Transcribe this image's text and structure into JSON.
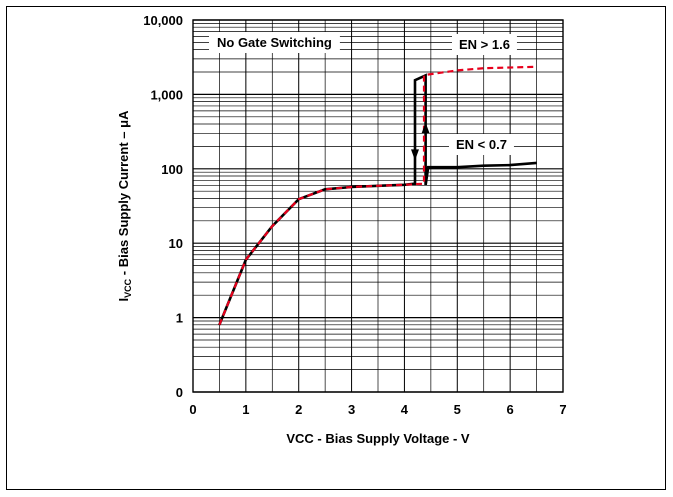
{
  "chart_data": {
    "type": "line",
    "title": "",
    "xlabel": "VCC - Bias Supply Voltage - V",
    "ylabel": {
      "main": "I",
      "subscript": "VCC",
      "rest": " - Bias Supply Current – μA"
    },
    "x_ticks": [
      "0",
      "1",
      "2",
      "3",
      "4",
      "5",
      "6",
      "7"
    ],
    "xlim": [
      0,
      7
    ],
    "y_scale": "log",
    "y_ticks": [
      {
        "value": 0.1,
        "label": "0"
      },
      {
        "value": 1,
        "label": "1"
      },
      {
        "value": 10,
        "label": "10"
      },
      {
        "value": 100,
        "label": "100"
      },
      {
        "value": 1000,
        "label": "1,000"
      },
      {
        "value": 10000,
        "label": "10,000"
      }
    ],
    "ylim": [
      0.1,
      10000
    ],
    "grid": true,
    "annotations": {
      "condition": "No Gate Switching",
      "en_high": "EN > 1.6",
      "en_low": "EN < 0.7"
    },
    "series": [
      {
        "color": "#000000",
        "dashed": false,
        "width": 2.6,
        "x": [
          0.5,
          1.0,
          1.5,
          2.0,
          2.5,
          3.0,
          3.5,
          4.0,
          4.2,
          4.2,
          4.4,
          4.4,
          4.45,
          5.0,
          5.5,
          6.0,
          6.5
        ],
        "y": [
          0.8,
          6,
          17,
          39,
          53,
          57,
          59,
          61,
          63,
          1550,
          1800,
          60,
          105,
          105,
          110,
          112,
          120
        ]
      },
      {
        "color": "#e8001c",
        "dashed": true,
        "width": 2.2,
        "x": [
          0.5,
          1.0,
          1.5,
          2.0,
          2.5,
          3.0,
          3.5,
          4.0,
          4.37,
          4.37,
          4.45,
          5.0,
          5.5,
          6.0,
          6.5
        ],
        "y": [
          0.8,
          6,
          17,
          39,
          53,
          57,
          59,
          61,
          63,
          1800,
          1850,
          2100,
          2250,
          2300,
          2350
        ]
      }
    ]
  },
  "colors": {
    "grid": "#000000",
    "axis": "#000000",
    "primary_trace": "#000000",
    "secondary_trace": "#e8001c"
  }
}
